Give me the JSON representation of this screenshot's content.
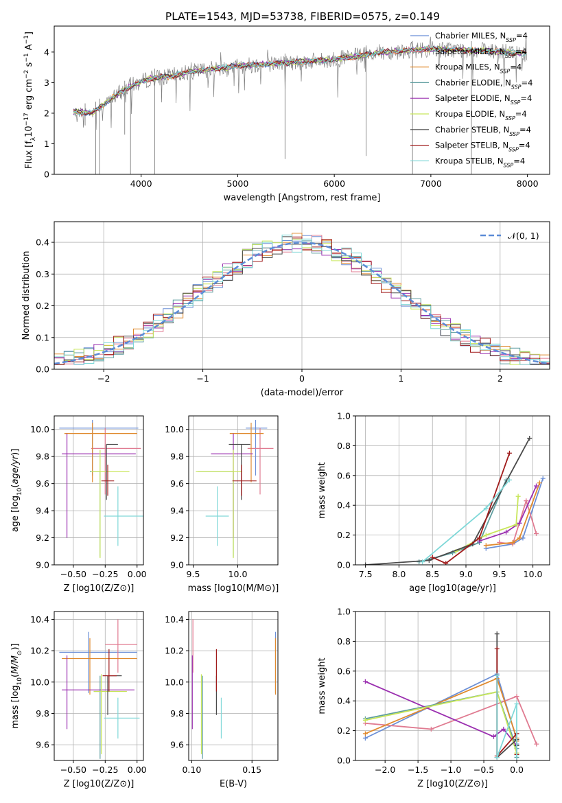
{
  "page": {
    "title": "PLATE=1543, MJD=53738, FIBERID=0575, z=0.149"
  },
  "colors": {
    "grid": "#b0b0b0",
    "frame": "#000000",
    "gauss": "#5b8bd6",
    "models": [
      "#6b8fd6",
      "#e07b91",
      "#e08a2e",
      "#5f9ea0",
      "#9b30b0",
      "#c8e65a",
      "#4a4a4a",
      "#a01b1b",
      "#7fd8d8"
    ]
  },
  "chart_data": [
    {
      "id": "spectrum",
      "type": "line",
      "xlabel": "wavelength [Angstrom, rest frame]",
      "ylabel": "Flux [f_λ 10^-17 erg cm^-2 s^-1 A^-1]",
      "xlim": [
        3100,
        8230
      ],
      "ylim": [
        0,
        4.85
      ],
      "xticks": [
        4000,
        5000,
        6000,
        7000,
        8000
      ],
      "yticks": [
        0,
        1,
        2,
        3,
        4
      ],
      "grid": false,
      "legend_position": "upper right",
      "legend": [
        {
          "label": "Chabrier MILES, N_SSP=4",
          "color_index": 0
        },
        {
          "label": "Salpeter MILES, N_SSP=4",
          "color_index": 1
        },
        {
          "label": "Kroupa MILES, N_SSP=4",
          "color_index": 2
        },
        {
          "label": "Chabrier ELODIE, N_SSP=4",
          "color_index": 3
        },
        {
          "label": "Salpeter ELODIE, N_SSP=4",
          "color_index": 4
        },
        {
          "label": "Kroupa ELODIE, N_SSP=4",
          "color_index": 5
        },
        {
          "label": "Chabrier STELIB, N_SSP=4",
          "color_index": 6
        },
        {
          "label": "Salpeter STELIB, N_SSP=4",
          "color_index": 7
        },
        {
          "label": "Kroupa STELIB, N_SSP=4",
          "color_index": 8
        }
      ],
      "continuum": {
        "x": [
          3300,
          3500,
          3700,
          3900,
          4100,
          4300,
          4500,
          5000,
          5500,
          6000,
          6500,
          7000,
          7500,
          8000
        ],
        "y": [
          2.05,
          2.0,
          2.5,
          2.9,
          3.15,
          3.2,
          3.35,
          3.55,
          3.65,
          3.75,
          4.0,
          4.1,
          4.05,
          3.95
        ]
      },
      "absorption_lines": [
        {
          "x": 3530,
          "y": 0.0
        },
        {
          "x": 3570,
          "y": 0.0
        },
        {
          "x": 3890,
          "y": 0.0
        },
        {
          "x": 4140,
          "y": 0.0
        },
        {
          "x": 5490,
          "y": 0.5
        },
        {
          "x": 6330,
          "y": 0.6
        },
        {
          "x": 6810,
          "y": 0.0
        },
        {
          "x": 7420,
          "y": 0.0
        },
        {
          "x": 3420,
          "y": 1.6
        },
        {
          "x": 3830,
          "y": 1.3
        }
      ]
    },
    {
      "id": "residuals",
      "type": "line",
      "xlabel": "(data-model)/error",
      "ylabel": "Normed distribution",
      "xlim": [
        -2.5,
        2.5
      ],
      "ylim": [
        0,
        0.465
      ],
      "xticks": [
        -2,
        -1,
        0,
        1,
        2
      ],
      "yticks": [
        0.0,
        0.1,
        0.2,
        0.3,
        0.4
      ],
      "grid": true,
      "legend_position": "upper right",
      "legend": [
        {
          "label": "𝒩(0, 1)",
          "style": "dashed"
        }
      ],
      "gaussian": {
        "mean": 0,
        "sigma": 1
      }
    },
    {
      "id": "age_vs_Z",
      "type": "scatter",
      "xlabel": "Z [log10(Z/Z⊙)]",
      "ylabel": "age [log10(age/yr)]",
      "xlim": [
        -0.65,
        0.05
      ],
      "ylim": [
        9.0,
        10.1
      ],
      "xticks": [
        -0.5,
        -0.25,
        0.0
      ],
      "xtick_labels": [
        "−0.50",
        "−0.25",
        "0.00"
      ],
      "yticks": [
        9.0,
        9.2,
        9.4,
        9.6,
        9.8,
        10.0
      ],
      "grid": true,
      "points": [
        {
          "x": -0.35,
          "xerr": [
            0.26,
            0.36
          ],
          "y": 10.01,
          "yerr": [
            0.35,
            0.06
          ],
          "c": 0
        },
        {
          "x": -0.25,
          "xerr": [
            0.11,
            0.28
          ],
          "y": 9.86,
          "yerr": [
            0.34,
            0.15
          ],
          "c": 1
        },
        {
          "x": -0.35,
          "xerr": [
            0.22,
            0.35
          ],
          "y": 9.97,
          "yerr": [
            0.36,
            0.08
          ],
          "c": 2
        },
        {
          "x": -0.29,
          "xerr": [
            0.08,
            0.0
          ],
          "y": 9.69,
          "yerr": [
            0.63,
            0.0
          ],
          "c": 3
        },
        {
          "x": -0.55,
          "xerr": [
            0.04,
            0.54
          ],
          "y": 9.82,
          "yerr": [
            0.62,
            0.15
          ],
          "c": 4
        },
        {
          "x": -0.29,
          "xerr": [
            0.07,
            0.23
          ],
          "y": 9.69,
          "yerr": [
            0.64,
            0.16
          ],
          "c": 5
        },
        {
          "x": -0.24,
          "xerr": [
            0.0,
            0.09
          ],
          "y": 9.89,
          "yerr": [
            0.41,
            0.0
          ],
          "c": 6
        },
        {
          "x": -0.23,
          "xerr": [
            0.05,
            0.05
          ],
          "y": 9.62,
          "yerr": [
            0.11,
            0.12
          ],
          "c": 7
        },
        {
          "x": -0.15,
          "xerr": [
            0.11,
            0.2
          ],
          "y": 9.36,
          "yerr": [
            0.22,
            0.22
          ],
          "c": 8
        }
      ]
    },
    {
      "id": "age_vs_mass",
      "type": "scatter",
      "xlabel": "mass [log10(M/M⊙)]",
      "ylabel": "",
      "xlim": [
        9.45,
        10.45
      ],
      "ylim": [
        9.0,
        10.1
      ],
      "xticks": [
        9.5,
        10.0
      ],
      "yticks": [
        9.0,
        9.2,
        9.4,
        9.6,
        9.8,
        10.0
      ],
      "grid": true,
      "points": [
        {
          "x": 10.2,
          "xerr": [
            0.11,
            0.13
          ],
          "y": 10.01,
          "yerr": [
            0.35,
            0.06
          ],
          "c": 0
        },
        {
          "x": 10.25,
          "xerr": [
            0.14,
            0.15
          ],
          "y": 9.86,
          "yerr": [
            0.34,
            0.15
          ],
          "c": 1
        },
        {
          "x": 10.15,
          "xerr": [
            0.24,
            0.14
          ],
          "y": 9.97,
          "yerr": [
            0.36,
            0.08
          ],
          "c": 2
        },
        {
          "x": 9.95,
          "xerr": [
            0.4,
            0.0
          ],
          "y": 9.69,
          "yerr": [
            0.63,
            0.0
          ],
          "c": 3
        },
        {
          "x": 9.95,
          "xerr": [
            0.25,
            0.22
          ],
          "y": 9.82,
          "yerr": [
            0.62,
            0.15
          ],
          "c": 4
        },
        {
          "x": 9.95,
          "xerr": [
            0.42,
            0.1
          ],
          "y": 9.69,
          "yerr": [
            0.64,
            0.16
          ],
          "c": 5
        },
        {
          "x": 10.04,
          "xerr": [
            0.14,
            0.1
          ],
          "y": 9.89,
          "yerr": [
            0.41,
            0.0
          ],
          "c": 6
        },
        {
          "x": 10.04,
          "xerr": [
            0.1,
            0.17
          ],
          "y": 9.62,
          "yerr": [
            0.11,
            0.12
          ],
          "c": 7
        },
        {
          "x": 9.77,
          "xerr": [
            0.13,
            0.13
          ],
          "y": 9.36,
          "yerr": [
            0.22,
            0.22
          ],
          "c": 8
        }
      ]
    },
    {
      "id": "weight_vs_age",
      "type": "line",
      "xlabel": "age [log10(age/yr)]",
      "ylabel": "mass weight",
      "xlim": [
        7.35,
        10.25
      ],
      "ylim": [
        0,
        1.0
      ],
      "xticks": [
        7.5,
        8.0,
        8.5,
        9.0,
        9.5,
        10.0
      ],
      "yticks": [
        0.0,
        0.2,
        0.4,
        0.6,
        0.8,
        1.0
      ],
      "grid": true,
      "series": [
        {
          "c": 0,
          "x": [
            9.3,
            9.7,
            9.85,
            10.15
          ],
          "y": [
            0.11,
            0.14,
            0.18,
            0.58
          ]
        },
        {
          "c": 1,
          "x": [
            9.5,
            9.7,
            9.9,
            10.05
          ],
          "y": [
            0.15,
            0.14,
            0.43,
            0.21
          ]
        },
        {
          "c": 2,
          "x": [
            9.3,
            9.7,
            9.8,
            10.1
          ],
          "y": [
            0.13,
            0.15,
            0.18,
            0.55
          ]
        },
        {
          "c": 3,
          "x": [
            8.3,
            8.8,
            9.2,
            9.6
          ],
          "y": [
            0.02,
            0.08,
            0.15,
            0.57
          ]
        },
        {
          "c": 4,
          "x": [
            9.2,
            9.6,
            9.8,
            10.05
          ],
          "y": [
            0.16,
            0.22,
            0.28,
            0.53
          ]
        },
        {
          "c": 5,
          "x": [
            8.85,
            9.3,
            9.75,
            9.78
          ],
          "y": [
            0.09,
            0.2,
            0.27,
            0.46
          ]
        },
        {
          "c": 6,
          "x": [
            7.5,
            8.45,
            9.1,
            9.95
          ],
          "y": [
            0.0,
            0.03,
            0.14,
            0.85
          ]
        },
        {
          "c": 7,
          "x": [
            8.5,
            8.7,
            9.2,
            9.65
          ],
          "y": [
            0.05,
            0.01,
            0.18,
            0.75
          ]
        },
        {
          "c": 8,
          "x": [
            8.35,
            9.3,
            9.65
          ],
          "y": [
            0.02,
            0.38,
            0.57
          ]
        }
      ]
    },
    {
      "id": "mass_vs_Z",
      "type": "scatter",
      "xlabel": "Z [log10(Z/Z⊙)]",
      "ylabel": "mass [log10(M/M⊙)]",
      "xlim": [
        -0.65,
        0.05
      ],
      "ylim": [
        9.5,
        10.45
      ],
      "xticks": [
        -0.5,
        -0.25,
        0.0
      ],
      "xtick_labels": [
        "−0.50",
        "−0.25",
        "0.00"
      ],
      "yticks": [
        9.6,
        9.8,
        10.0,
        10.2,
        10.4
      ],
      "grid": true,
      "points": [
        {
          "x": -0.38,
          "xerr": [
            0.23,
            0.38
          ],
          "y": 10.19,
          "yerr": [
            0.26,
            0.13
          ],
          "c": 0
        },
        {
          "x": -0.15,
          "xerr": [
            0.1,
            0.15
          ],
          "y": 10.24,
          "yerr": [
            0.18,
            0.16
          ],
          "c": 1
        },
        {
          "x": -0.37,
          "xerr": [
            0.22,
            0.37
          ],
          "y": 10.15,
          "yerr": [
            0.23,
            0.13
          ],
          "c": 2
        },
        {
          "x": -0.29,
          "xerr": [
            0.05,
            0.0
          ],
          "y": 9.94,
          "yerr": [
            0.43,
            0.1
          ],
          "c": 3
        },
        {
          "x": -0.55,
          "xerr": [
            0.04,
            0.53
          ],
          "y": 9.95,
          "yerr": [
            0.25,
            0.22
          ],
          "c": 4
        },
        {
          "x": -0.28,
          "xerr": [
            0.06,
            0.2
          ],
          "y": 9.94,
          "yerr": [
            0.4,
            0.11
          ],
          "c": 5
        },
        {
          "x": -0.23,
          "xerr": [
            0.0,
            0.11
          ],
          "y": 10.04,
          "yerr": [
            0.25,
            0.0
          ],
          "c": 6
        },
        {
          "x": -0.22,
          "xerr": [
            0.05,
            0.06
          ],
          "y": 10.04,
          "yerr": [
            0.1,
            0.17
          ],
          "c": 7
        },
        {
          "x": -0.15,
          "xerr": [
            0.11,
            0.17
          ],
          "y": 9.77,
          "yerr": [
            0.13,
            0.13
          ],
          "c": 8
        }
      ]
    },
    {
      "id": "mass_vs_ebv",
      "type": "scatter",
      "xlabel": "E(B-V)",
      "ylabel": "",
      "xlim": [
        0.0975,
        0.1715
      ],
      "ylim": [
        9.5,
        10.45
      ],
      "xticks": [
        0.1,
        0.15
      ],
      "xtick_labels": [
        "0.10",
        "0.15"
      ],
      "yticks": [
        9.6,
        9.8,
        10.0,
        10.2,
        10.4
      ],
      "grid": true,
      "points": [
        {
          "x": 0.1695,
          "y": 10.19,
          "yerr": [
            0.26,
            0.13
          ],
          "c": 0
        },
        {
          "x": 0.101,
          "y": 10.24,
          "yerr": [
            0.18,
            0.16
          ],
          "c": 1
        },
        {
          "x": 0.1695,
          "y": 10.15,
          "yerr": [
            0.23,
            0.13
          ],
          "c": 2
        },
        {
          "x": 0.109,
          "y": 9.94,
          "yerr": [
            0.43,
            0.1
          ],
          "c": 3
        },
        {
          "x": 0.1005,
          "y": 9.95,
          "yerr": [
            0.25,
            0.22
          ],
          "c": 4
        },
        {
          "x": 0.108,
          "y": 9.94,
          "yerr": [
            0.4,
            0.11
          ],
          "c": 5
        },
        {
          "x": 0.1205,
          "y": 10.04,
          "yerr": [
            0.25,
            0.0
          ],
          "c": 6
        },
        {
          "x": 0.1205,
          "y": 10.04,
          "yerr": [
            0.1,
            0.17
          ],
          "c": 7
        },
        {
          "x": 0.1245,
          "y": 9.77,
          "yerr": [
            0.13,
            0.13
          ],
          "c": 8
        }
      ]
    },
    {
      "id": "weight_vs_Z",
      "type": "line",
      "xlabel": "Z [log10(Z/Z⊙)]",
      "ylabel": "mass weight",
      "xlim": [
        -2.45,
        0.5
      ],
      "ylim": [
        0,
        1.0
      ],
      "xticks": [
        -2.0,
        -1.5,
        -1.0,
        -0.5,
        0.0
      ],
      "xtick_labels": [
        "−2.0",
        "−1.5",
        "−1.0",
        "−0.5",
        "0.0"
      ],
      "yticks": [
        0.0,
        0.2,
        0.4,
        0.6,
        0.8,
        1.0
      ],
      "grid": true,
      "series": [
        {
          "c": 0,
          "x": [
            -2.3,
            -0.3,
            0.0,
            0.0
          ],
          "y": [
            0.15,
            0.58,
            0.14,
            0.11
          ]
        },
        {
          "c": 1,
          "x": [
            -2.3,
            -1.3,
            0.0,
            0.3
          ],
          "y": [
            0.25,
            0.21,
            0.43,
            0.11
          ]
        },
        {
          "c": 2,
          "x": [
            -2.3,
            -0.3,
            0.0,
            0.0
          ],
          "y": [
            0.18,
            0.55,
            0.15,
            0.13
          ]
        },
        {
          "c": 3,
          "x": [
            -2.3,
            -0.3,
            0.0,
            0.0
          ],
          "y": [
            0.28,
            0.46,
            0.08,
            0.02
          ]
        },
        {
          "c": 4,
          "x": [
            -2.3,
            -0.35,
            -0.2,
            0.0
          ],
          "y": [
            0.53,
            0.16,
            0.21,
            0.1
          ]
        },
        {
          "c": 5,
          "x": [
            -2.3,
            -0.3,
            0.0
          ],
          "y": [
            0.27,
            0.46,
            0.05
          ]
        },
        {
          "c": 6,
          "x": [
            -0.3,
            -0.3,
            0.0,
            0.0
          ],
          "y": [
            0.85,
            0.02,
            0.14,
            0.1
          ]
        },
        {
          "c": 7,
          "x": [
            -0.3,
            -0.3,
            0.0,
            0.0
          ],
          "y": [
            0.75,
            0.03,
            0.18,
            0.04
          ]
        },
        {
          "c": 8,
          "x": [
            -0.3,
            -0.3,
            0.0,
            0.0
          ],
          "y": [
            0.57,
            0.02,
            0.38,
            0.03
          ]
        }
      ]
    }
  ]
}
